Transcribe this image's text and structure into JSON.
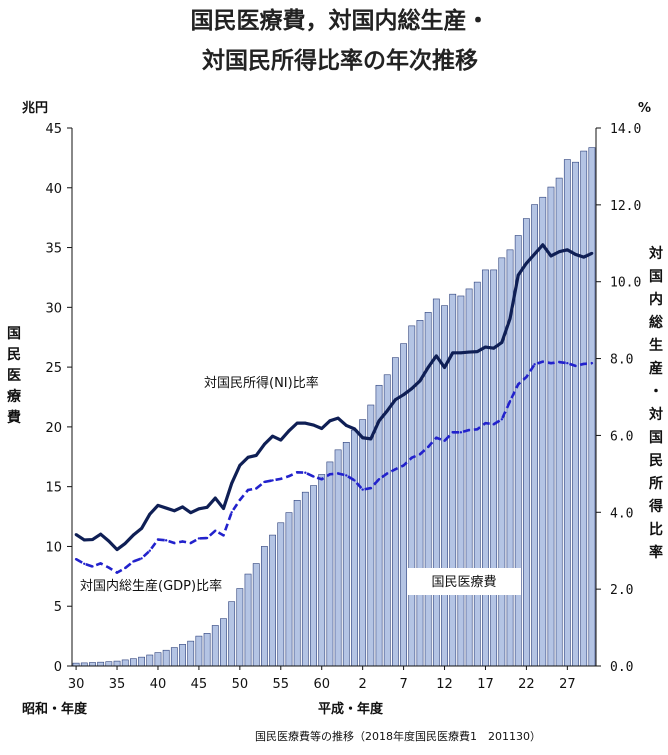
{
  "title_line1": "国民医療費，対国内総生産・",
  "title_line2": "対国民所得比率の年次推移",
  "source_note": "国民医療費等の推移（2018年度国民医療費1　201130）",
  "colors": {
    "bar_fill": "#b4c4e4",
    "bar_stroke": "#2b3f7a",
    "ni_line": "#0f1f55",
    "gdp_line": "#2222cc"
  },
  "chart_data": {
    "type": "bar",
    "left_unit": "兆円",
    "right_unit": "%",
    "left_axis_label": "国民医療費",
    "right_axis_label": "対国内総生産・対国民所得比率",
    "left_ylim": [
      0,
      45
    ],
    "left_ticks": [
      "0",
      "5",
      "10",
      "15",
      "20",
      "25",
      "30",
      "35",
      "40",
      "45"
    ],
    "right_ylim": [
      0,
      14
    ],
    "right_ticks": [
      "0.0",
      "2.0",
      "4.0",
      "6.0",
      "8.0",
      "10.0",
      "12.0",
      "14.0"
    ],
    "x_tick_labels": [
      "30",
      "35",
      "40",
      "45",
      "50",
      "55",
      "60",
      "2",
      "7",
      "12",
      "17",
      "22",
      "27"
    ],
    "x_era_labels": [
      "昭和・年度",
      "平成・年度"
    ],
    "categories": [
      "S30",
      "S31",
      "S32",
      "S33",
      "S34",
      "S35",
      "S36",
      "S37",
      "S38",
      "S39",
      "S40",
      "S41",
      "S42",
      "S43",
      "S44",
      "S45",
      "S46",
      "S47",
      "S48",
      "S49",
      "S50",
      "S51",
      "S52",
      "S53",
      "S54",
      "S55",
      "S56",
      "S57",
      "S58",
      "S59",
      "S60",
      "S61",
      "S62",
      "S63",
      "H1",
      "H2",
      "H3",
      "H4",
      "H5",
      "H6",
      "H7",
      "H8",
      "H9",
      "H10",
      "H11",
      "H12",
      "H13",
      "H14",
      "H15",
      "H16",
      "H17",
      "H18",
      "H19",
      "H20",
      "H21",
      "H22",
      "H23",
      "H24",
      "H25",
      "H26",
      "H27",
      "H28",
      "H29",
      "H30"
    ],
    "series": [
      {
        "name": "国民医療費",
        "unit": "兆円",
        "values": [
          0.24,
          0.26,
          0.29,
          0.32,
          0.36,
          0.41,
          0.51,
          0.61,
          0.74,
          0.92,
          1.12,
          1.32,
          1.54,
          1.81,
          2.08,
          2.5,
          2.73,
          3.39,
          3.96,
          5.38,
          6.48,
          7.69,
          8.57,
          10.0,
          10.95,
          11.98,
          12.83,
          13.86,
          14.54,
          15.09,
          16.02,
          17.07,
          18.08,
          18.71,
          19.73,
          20.61,
          21.83,
          23.48,
          24.36,
          25.79,
          26.96,
          28.45,
          28.91,
          29.58,
          30.7,
          30.14,
          31.1,
          30.95,
          31.54,
          32.11,
          33.13,
          33.13,
          34.14,
          34.81,
          36.01,
          37.42,
          38.59,
          39.21,
          40.06,
          40.81,
          42.36,
          42.14,
          43.07,
          43.36
        ]
      },
      {
        "name": "対国民所得(NI)比率",
        "unit": "%",
        "values": [
          3.42,
          3.28,
          3.29,
          3.43,
          3.25,
          3.03,
          3.19,
          3.41,
          3.58,
          3.95,
          4.18,
          4.11,
          4.04,
          4.14,
          3.99,
          4.09,
          4.13,
          4.37,
          4.1,
          4.75,
          5.22,
          5.43,
          5.48,
          5.77,
          5.98,
          5.88,
          6.12,
          6.32,
          6.32,
          6.27,
          6.18,
          6.38,
          6.45,
          6.26,
          6.17,
          5.94,
          5.91,
          6.38,
          6.64,
          6.93,
          7.06,
          7.22,
          7.42,
          7.77,
          8.07,
          7.77,
          8.15,
          8.15,
          8.17,
          8.18,
          8.3,
          8.27,
          8.42,
          9.04,
          10.17,
          10.48,
          10.72,
          10.96,
          10.67,
          10.78,
          10.83,
          10.71,
          10.64,
          10.74
        ]
      },
      {
        "name": "対国内総生産(GDP)比率",
        "unit": "%",
        "values": [
          2.78,
          2.66,
          2.59,
          2.67,
          2.56,
          2.43,
          2.55,
          2.72,
          2.8,
          3.0,
          3.29,
          3.27,
          3.2,
          3.24,
          3.2,
          3.32,
          3.33,
          3.52,
          3.4,
          4.0,
          4.32,
          4.58,
          4.62,
          4.79,
          4.83,
          4.87,
          4.94,
          5.04,
          5.03,
          4.93,
          4.86,
          4.99,
          5.01,
          4.96,
          4.83,
          4.59,
          4.63,
          4.86,
          5.01,
          5.12,
          5.22,
          5.42,
          5.51,
          5.7,
          5.94,
          5.86,
          6.08,
          6.08,
          6.14,
          6.16,
          6.32,
          6.29,
          6.42,
          6.89,
          7.33,
          7.52,
          7.85,
          7.92,
          7.88,
          7.91,
          7.88,
          7.81,
          7.86,
          7.88
        ]
      }
    ],
    "annotations": [
      "対国民所得(NI)比率",
      "対国内総生産(GDP)比率",
      "国民医療費"
    ]
  }
}
